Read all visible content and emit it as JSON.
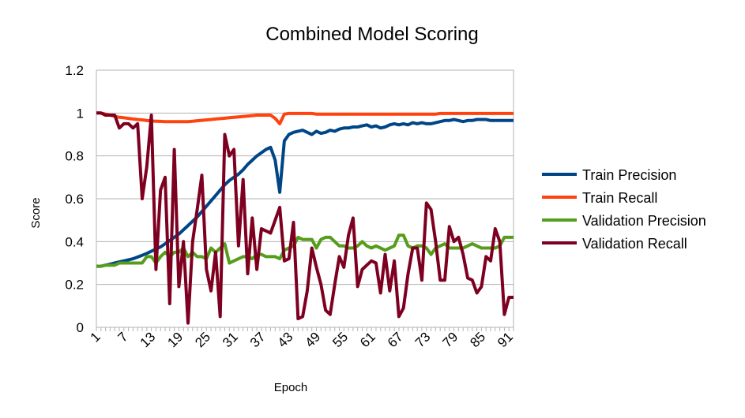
{
  "chart_data": {
    "type": "line",
    "title": "Combined Model Scoring",
    "xlabel": "Epoch",
    "ylabel": "Score",
    "ylim": [
      0,
      1.2
    ],
    "yticks": [
      "0",
      "0.2",
      "0.4",
      "0.6",
      "0.8",
      "1",
      "1.2"
    ],
    "xlim": [
      1,
      92
    ],
    "xtick_labels": [
      "1",
      "7",
      "13",
      "19",
      "25",
      "31",
      "37",
      "43",
      "49",
      "55",
      "61",
      "67",
      "73",
      "79",
      "85",
      "91"
    ],
    "grid": "horizontal",
    "legend_position": "right",
    "series": [
      {
        "name": "Train Precision",
        "color": "#004586",
        "values": [
          0.285,
          0.285,
          0.29,
          0.295,
          0.3,
          0.305,
          0.31,
          0.315,
          0.32,
          0.328,
          0.336,
          0.345,
          0.355,
          0.365,
          0.375,
          0.39,
          0.405,
          0.42,
          0.435,
          0.455,
          0.475,
          0.495,
          0.515,
          0.54,
          0.565,
          0.59,
          0.615,
          0.64,
          0.665,
          0.685,
          0.7,
          0.715,
          0.735,
          0.76,
          0.78,
          0.8,
          0.815,
          0.83,
          0.84,
          0.78,
          0.63,
          0.87,
          0.9,
          0.91,
          0.915,
          0.92,
          0.91,
          0.9,
          0.915,
          0.905,
          0.91,
          0.92,
          0.915,
          0.925,
          0.93,
          0.93,
          0.935,
          0.935,
          0.94,
          0.945,
          0.935,
          0.94,
          0.93,
          0.935,
          0.945,
          0.95,
          0.945,
          0.95,
          0.945,
          0.955,
          0.95,
          0.955,
          0.95,
          0.95,
          0.955,
          0.96,
          0.965,
          0.965,
          0.97,
          0.965,
          0.96,
          0.965,
          0.965,
          0.97,
          0.97,
          0.97,
          0.965,
          0.965,
          0.965,
          0.965,
          0.965,
          0.965
        ]
      },
      {
        "name": "Train Recall",
        "color": "#ff420e",
        "values": [
          1.0,
          1.0,
          0.995,
          0.99,
          0.985,
          0.98,
          0.978,
          0.975,
          0.972,
          0.97,
          0.968,
          0.965,
          0.963,
          0.962,
          0.961,
          0.96,
          0.96,
          0.96,
          0.96,
          0.96,
          0.96,
          0.962,
          0.964,
          0.966,
          0.968,
          0.97,
          0.972,
          0.974,
          0.976,
          0.978,
          0.98,
          0.982,
          0.984,
          0.986,
          0.988,
          0.99,
          0.99,
          0.99,
          0.99,
          0.975,
          0.95,
          0.995,
          0.998,
          0.998,
          0.998,
          0.998,
          0.998,
          0.998,
          0.995,
          0.995,
          0.995,
          0.995,
          0.995,
          0.995,
          0.995,
          0.995,
          0.995,
          0.995,
          0.995,
          0.995,
          0.995,
          0.995,
          0.995,
          0.995,
          0.995,
          0.995,
          0.995,
          0.995,
          0.995,
          0.995,
          0.995,
          0.995,
          0.995,
          0.995,
          0.995,
          0.998,
          0.998,
          0.998,
          0.998,
          0.998,
          0.998,
          0.998,
          0.998,
          0.998,
          0.998,
          0.998,
          0.998,
          0.998,
          0.998,
          0.998,
          0.998,
          0.998
        ]
      },
      {
        "name": "Validation Precision",
        "color": "#579d1c",
        "values": [
          0.285,
          0.285,
          0.29,
          0.29,
          0.29,
          0.3,
          0.3,
          0.3,
          0.3,
          0.3,
          0.3,
          0.33,
          0.33,
          0.3,
          0.33,
          0.35,
          0.33,
          0.35,
          0.35,
          0.37,
          0.33,
          0.35,
          0.33,
          0.33,
          0.32,
          0.37,
          0.35,
          0.37,
          0.39,
          0.3,
          0.31,
          0.32,
          0.33,
          0.33,
          0.32,
          0.34,
          0.34,
          0.33,
          0.33,
          0.33,
          0.32,
          0.36,
          0.37,
          0.38,
          0.42,
          0.41,
          0.41,
          0.41,
          0.37,
          0.41,
          0.42,
          0.42,
          0.4,
          0.38,
          0.38,
          0.37,
          0.37,
          0.38,
          0.4,
          0.38,
          0.37,
          0.38,
          0.37,
          0.36,
          0.37,
          0.38,
          0.43,
          0.43,
          0.38,
          0.37,
          0.38,
          0.38,
          0.37,
          0.34,
          0.37,
          0.38,
          0.39,
          0.37,
          0.37,
          0.37,
          0.37,
          0.38,
          0.39,
          0.38,
          0.37,
          0.37,
          0.37,
          0.37,
          0.38,
          0.42,
          0.42,
          0.42
        ]
      },
      {
        "name": "Validation Recall",
        "color": "#7e0021",
        "values": [
          1.0,
          1.0,
          0.99,
          0.99,
          0.99,
          0.93,
          0.95,
          0.95,
          0.93,
          0.95,
          0.6,
          0.75,
          0.99,
          0.27,
          0.64,
          0.7,
          0.11,
          0.83,
          0.19,
          0.4,
          0.02,
          0.4,
          0.55,
          0.71,
          0.27,
          0.17,
          0.35,
          0.05,
          0.9,
          0.8,
          0.83,
          0.38,
          0.69,
          0.25,
          0.51,
          0.27,
          0.46,
          0.45,
          0.44,
          0.5,
          0.56,
          0.31,
          0.32,
          0.49,
          0.04,
          0.05,
          0.17,
          0.37,
          0.28,
          0.2,
          0.08,
          0.06,
          0.2,
          0.33,
          0.28,
          0.43,
          0.51,
          0.19,
          0.27,
          0.29,
          0.31,
          0.3,
          0.16,
          0.34,
          0.17,
          0.31,
          0.05,
          0.09,
          0.25,
          0.37,
          0.37,
          0.22,
          0.58,
          0.55,
          0.4,
          0.22,
          0.22,
          0.47,
          0.4,
          0.42,
          0.34,
          0.23,
          0.22,
          0.16,
          0.19,
          0.33,
          0.31,
          0.46,
          0.4,
          0.06,
          0.14,
          0.14
        ]
      }
    ]
  }
}
